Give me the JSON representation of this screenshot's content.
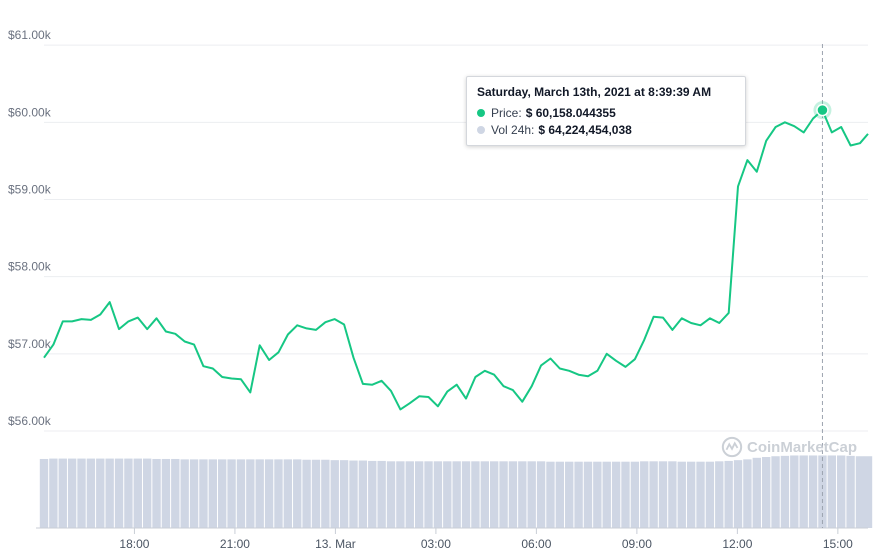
{
  "chart_data": {
    "type": "line",
    "title": "",
    "y_tick_labels": [
      "$56.00k",
      "$57.00k",
      "$58.00k",
      "$59.00k",
      "$60.00k",
      "$61.00k"
    ],
    "y_ticks": [
      56000,
      57000,
      58000,
      59000,
      60000,
      61000
    ],
    "ylim": [
      55000,
      61000
    ],
    "x_tick_labels": [
      "18:00",
      "21:00",
      "13. Mar",
      "03:00",
      "06:00",
      "09:00",
      "12:00",
      "15:00"
    ],
    "x_ticks_hours": [
      18,
      21,
      24,
      27,
      30,
      33,
      36,
      39
    ],
    "x_range_hours": [
      15.3,
      39.9
    ],
    "grid": true,
    "colors": {
      "price_line": "#16c784",
      "volume_bar": "#cfd6e4",
      "crosshair": "#9ca3af"
    },
    "series": [
      {
        "name": "Price",
        "x_hours": [
          15.3,
          15.58,
          15.86,
          16.14,
          16.42,
          16.7,
          16.98,
          17.26,
          17.54,
          17.82,
          18.1,
          18.38,
          18.66,
          18.94,
          19.22,
          19.5,
          19.78,
          20.06,
          20.34,
          20.62,
          20.9,
          21.18,
          21.46,
          21.74,
          22.02,
          22.3,
          22.58,
          22.86,
          23.14,
          23.42,
          23.7,
          23.98,
          24.26,
          24.54,
          24.82,
          25.1,
          25.38,
          25.66,
          25.94,
          26.22,
          26.5,
          26.78,
          27.06,
          27.34,
          27.62,
          27.9,
          28.18,
          28.46,
          28.74,
          29.02,
          29.3,
          29.58,
          29.86,
          30.14,
          30.42,
          30.7,
          30.98,
          31.26,
          31.54,
          31.82,
          32.1,
          32.38,
          32.66,
          32.94,
          33.22,
          33.5,
          33.78,
          34.06,
          34.34,
          34.62,
          34.9,
          35.18,
          35.46,
          35.74,
          36.02,
          36.3,
          36.58,
          36.86,
          37.14,
          37.42,
          37.7,
          37.98,
          38.26,
          38.54,
          38.82,
          39.1,
          39.38,
          39.66,
          39.9
        ],
        "values": [
          56950,
          57120,
          57420,
          57420,
          57450,
          57440,
          57510,
          57670,
          57320,
          57420,
          57470,
          57320,
          57460,
          57290,
          57260,
          57160,
          57120,
          56840,
          56810,
          56700,
          56680,
          56670,
          56500,
          57110,
          56920,
          57020,
          57250,
          57370,
          57330,
          57310,
          57410,
          57450,
          57380,
          56950,
          56610,
          56600,
          56650,
          56520,
          56280,
          56360,
          56450,
          56440,
          56320,
          56510,
          56600,
          56420,
          56700,
          56780,
          56730,
          56580,
          56530,
          56380,
          56580,
          56850,
          56940,
          56810,
          56780,
          56730,
          56710,
          56780,
          57000,
          56910,
          56830,
          56930,
          57180,
          57480,
          57470,
          57310,
          57460,
          57400,
          57370,
          57460,
          57400,
          57530,
          59170,
          59510,
          59360,
          59760,
          59940,
          60000,
          59950,
          59870,
          60050,
          60158,
          59870,
          59940,
          59700,
          59730,
          59850
        ],
        "color": "#16c784"
      },
      {
        "name": "Vol 24h",
        "x_hours": [
          15.3,
          15.58,
          15.86,
          16.14,
          16.42,
          16.7,
          16.98,
          17.26,
          17.54,
          17.82,
          18.1,
          18.38,
          18.66,
          18.94,
          19.22,
          19.5,
          19.78,
          20.06,
          20.34,
          20.62,
          20.9,
          21.18,
          21.46,
          21.74,
          22.02,
          22.3,
          22.58,
          22.86,
          23.14,
          23.42,
          23.7,
          23.98,
          24.26,
          24.54,
          24.82,
          25.1,
          25.38,
          25.66,
          25.94,
          26.22,
          26.5,
          26.78,
          27.06,
          27.34,
          27.62,
          27.9,
          28.18,
          28.46,
          28.74,
          29.02,
          29.3,
          29.58,
          29.86,
          30.14,
          30.42,
          30.7,
          30.98,
          31.26,
          31.54,
          31.82,
          32.1,
          32.38,
          32.66,
          32.94,
          33.22,
          33.5,
          33.78,
          34.06,
          34.34,
          34.62,
          34.9,
          35.18,
          35.46,
          35.74,
          36.02,
          36.3,
          36.58,
          36.86,
          37.14,
          37.42,
          37.7,
          37.98,
          38.26,
          38.54,
          38.82,
          39.1,
          39.38,
          39.66,
          39.9
        ],
        "values": [
          0.885,
          0.89,
          0.89,
          0.89,
          0.89,
          0.89,
          0.89,
          0.89,
          0.89,
          0.89,
          0.89,
          0.89,
          0.885,
          0.885,
          0.885,
          0.88,
          0.88,
          0.88,
          0.88,
          0.88,
          0.88,
          0.88,
          0.88,
          0.88,
          0.88,
          0.88,
          0.88,
          0.88,
          0.875,
          0.875,
          0.875,
          0.87,
          0.87,
          0.865,
          0.865,
          0.86,
          0.86,
          0.855,
          0.855,
          0.855,
          0.855,
          0.855,
          0.855,
          0.855,
          0.855,
          0.855,
          0.855,
          0.855,
          0.855,
          0.855,
          0.855,
          0.855,
          0.855,
          0.855,
          0.85,
          0.85,
          0.85,
          0.85,
          0.85,
          0.85,
          0.85,
          0.85,
          0.85,
          0.85,
          0.855,
          0.855,
          0.855,
          0.855,
          0.85,
          0.85,
          0.85,
          0.85,
          0.855,
          0.86,
          0.87,
          0.88,
          0.9,
          0.91,
          0.92,
          0.925,
          0.93,
          0.93,
          0.93,
          0.93,
          0.93,
          0.93,
          0.925,
          0.92,
          0.92
        ],
        "color": "#cfd6e4"
      }
    ],
    "highlight": {
      "x_hours": 38.54,
      "value": 60158.044355
    }
  },
  "tooltip": {
    "title": "Saturday, March 13th, 2021 at 8:39:39 AM",
    "price_label": "Price:",
    "price_value": "$ 60,158.044355",
    "vol_label": "Vol 24h:",
    "vol_value": "$ 64,224,454,038",
    "price_dot_color": "#16c784",
    "vol_dot_color": "#cfd6e4"
  },
  "watermark": {
    "text": "CoinMarketCap"
  }
}
